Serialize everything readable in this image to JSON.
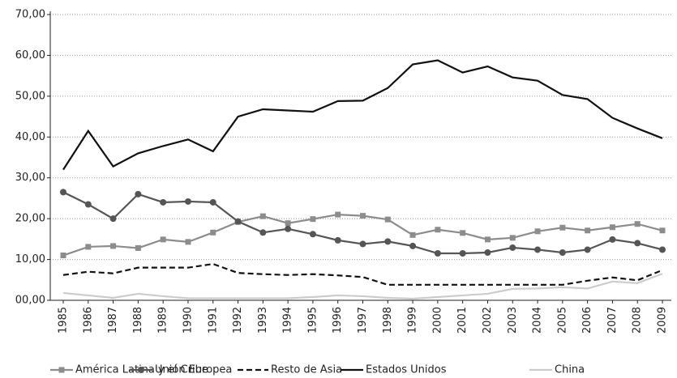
{
  "chart_data": {
    "type": "line",
    "categories": [
      "1985",
      "1986",
      "1987",
      "1988",
      "1989",
      "1990",
      "1991",
      "1992",
      "1993",
      "1994",
      "1995",
      "1996",
      "1997",
      "1998",
      "1999",
      "2000",
      "2001",
      "2002",
      "2003",
      "2004",
      "2005",
      "2006",
      "2007",
      "2008",
      "2009"
    ],
    "ylim": [
      0,
      70
    ],
    "yticks": [
      {
        "value": 0,
        "label": "00,00"
      },
      {
        "value": 10,
        "label": "10,00"
      },
      {
        "value": 20,
        "label": "20,00"
      },
      {
        "value": 30,
        "label": "30,00"
      },
      {
        "value": 40,
        "label": "40,00"
      },
      {
        "value": 50,
        "label": "50,00"
      },
      {
        "value": 60,
        "label": "60,00"
      },
      {
        "value": 70,
        "label": "70,00"
      }
    ],
    "grid": true,
    "legend": "bottom",
    "series": [
      {
        "name": "América Latina y el Cribe",
        "color": "#8c8c8c",
        "marker": "square",
        "dashed": false,
        "values": [
          11,
          13.1,
          13.3,
          12.8,
          14.9,
          14.3,
          16.6,
          19.2,
          20.6,
          18.9,
          19.9,
          21,
          20.7,
          19.8,
          16,
          17.3,
          16.5,
          14.9,
          15.3,
          16.9,
          17.8,
          17.1,
          17.9,
          18.7,
          17.1
        ]
      },
      {
        "name": "Unión Europea",
        "color": "#555555",
        "marker": "circle",
        "dashed": false,
        "values": [
          26.5,
          23.5,
          20,
          26,
          24,
          24.2,
          24,
          19.3,
          16.6,
          17.5,
          16.2,
          14.7,
          13.8,
          14.4,
          13.3,
          11.5,
          11.5,
          11.7,
          12.9,
          12.4,
          11.7,
          12.4,
          14.9,
          14,
          12.4
        ]
      },
      {
        "name": "Resto de Asia",
        "color": "#111111",
        "marker": null,
        "dashed": true,
        "values": [
          6.2,
          7,
          6.6,
          8,
          8,
          8,
          8.9,
          6.7,
          6.4,
          6.2,
          6.4,
          6.1,
          5.7,
          3.8,
          3.8,
          3.8,
          3.8,
          3.8,
          3.8,
          3.8,
          3.8,
          4.8,
          5.6,
          4.9,
          7.4
        ]
      },
      {
        "name": "Estados Unidos",
        "color": "#111111",
        "marker": null,
        "dashed": false,
        "values": [
          32,
          41.5,
          32.8,
          36,
          37.8,
          39.4,
          36.5,
          45,
          46.8,
          46.5,
          46.2,
          48.8,
          48.9,
          52,
          57.8,
          58.8,
          55.8,
          57.3,
          54.6,
          53.8,
          50.3,
          49.3,
          44.7,
          42.1,
          39.7
        ]
      },
      {
        "name": "China",
        "color": "#cccccc",
        "marker": null,
        "dashed": false,
        "values": [
          1.8,
          1.2,
          0.6,
          1.6,
          1,
          0.5,
          0.5,
          0.5,
          0.5,
          0.5,
          0.8,
          1.2,
          1,
          0.6,
          0.4,
          0.8,
          1.2,
          1.6,
          2.8,
          2.9,
          3.2,
          2.9,
          4.6,
          4.2,
          6.5
        ]
      }
    ]
  }
}
